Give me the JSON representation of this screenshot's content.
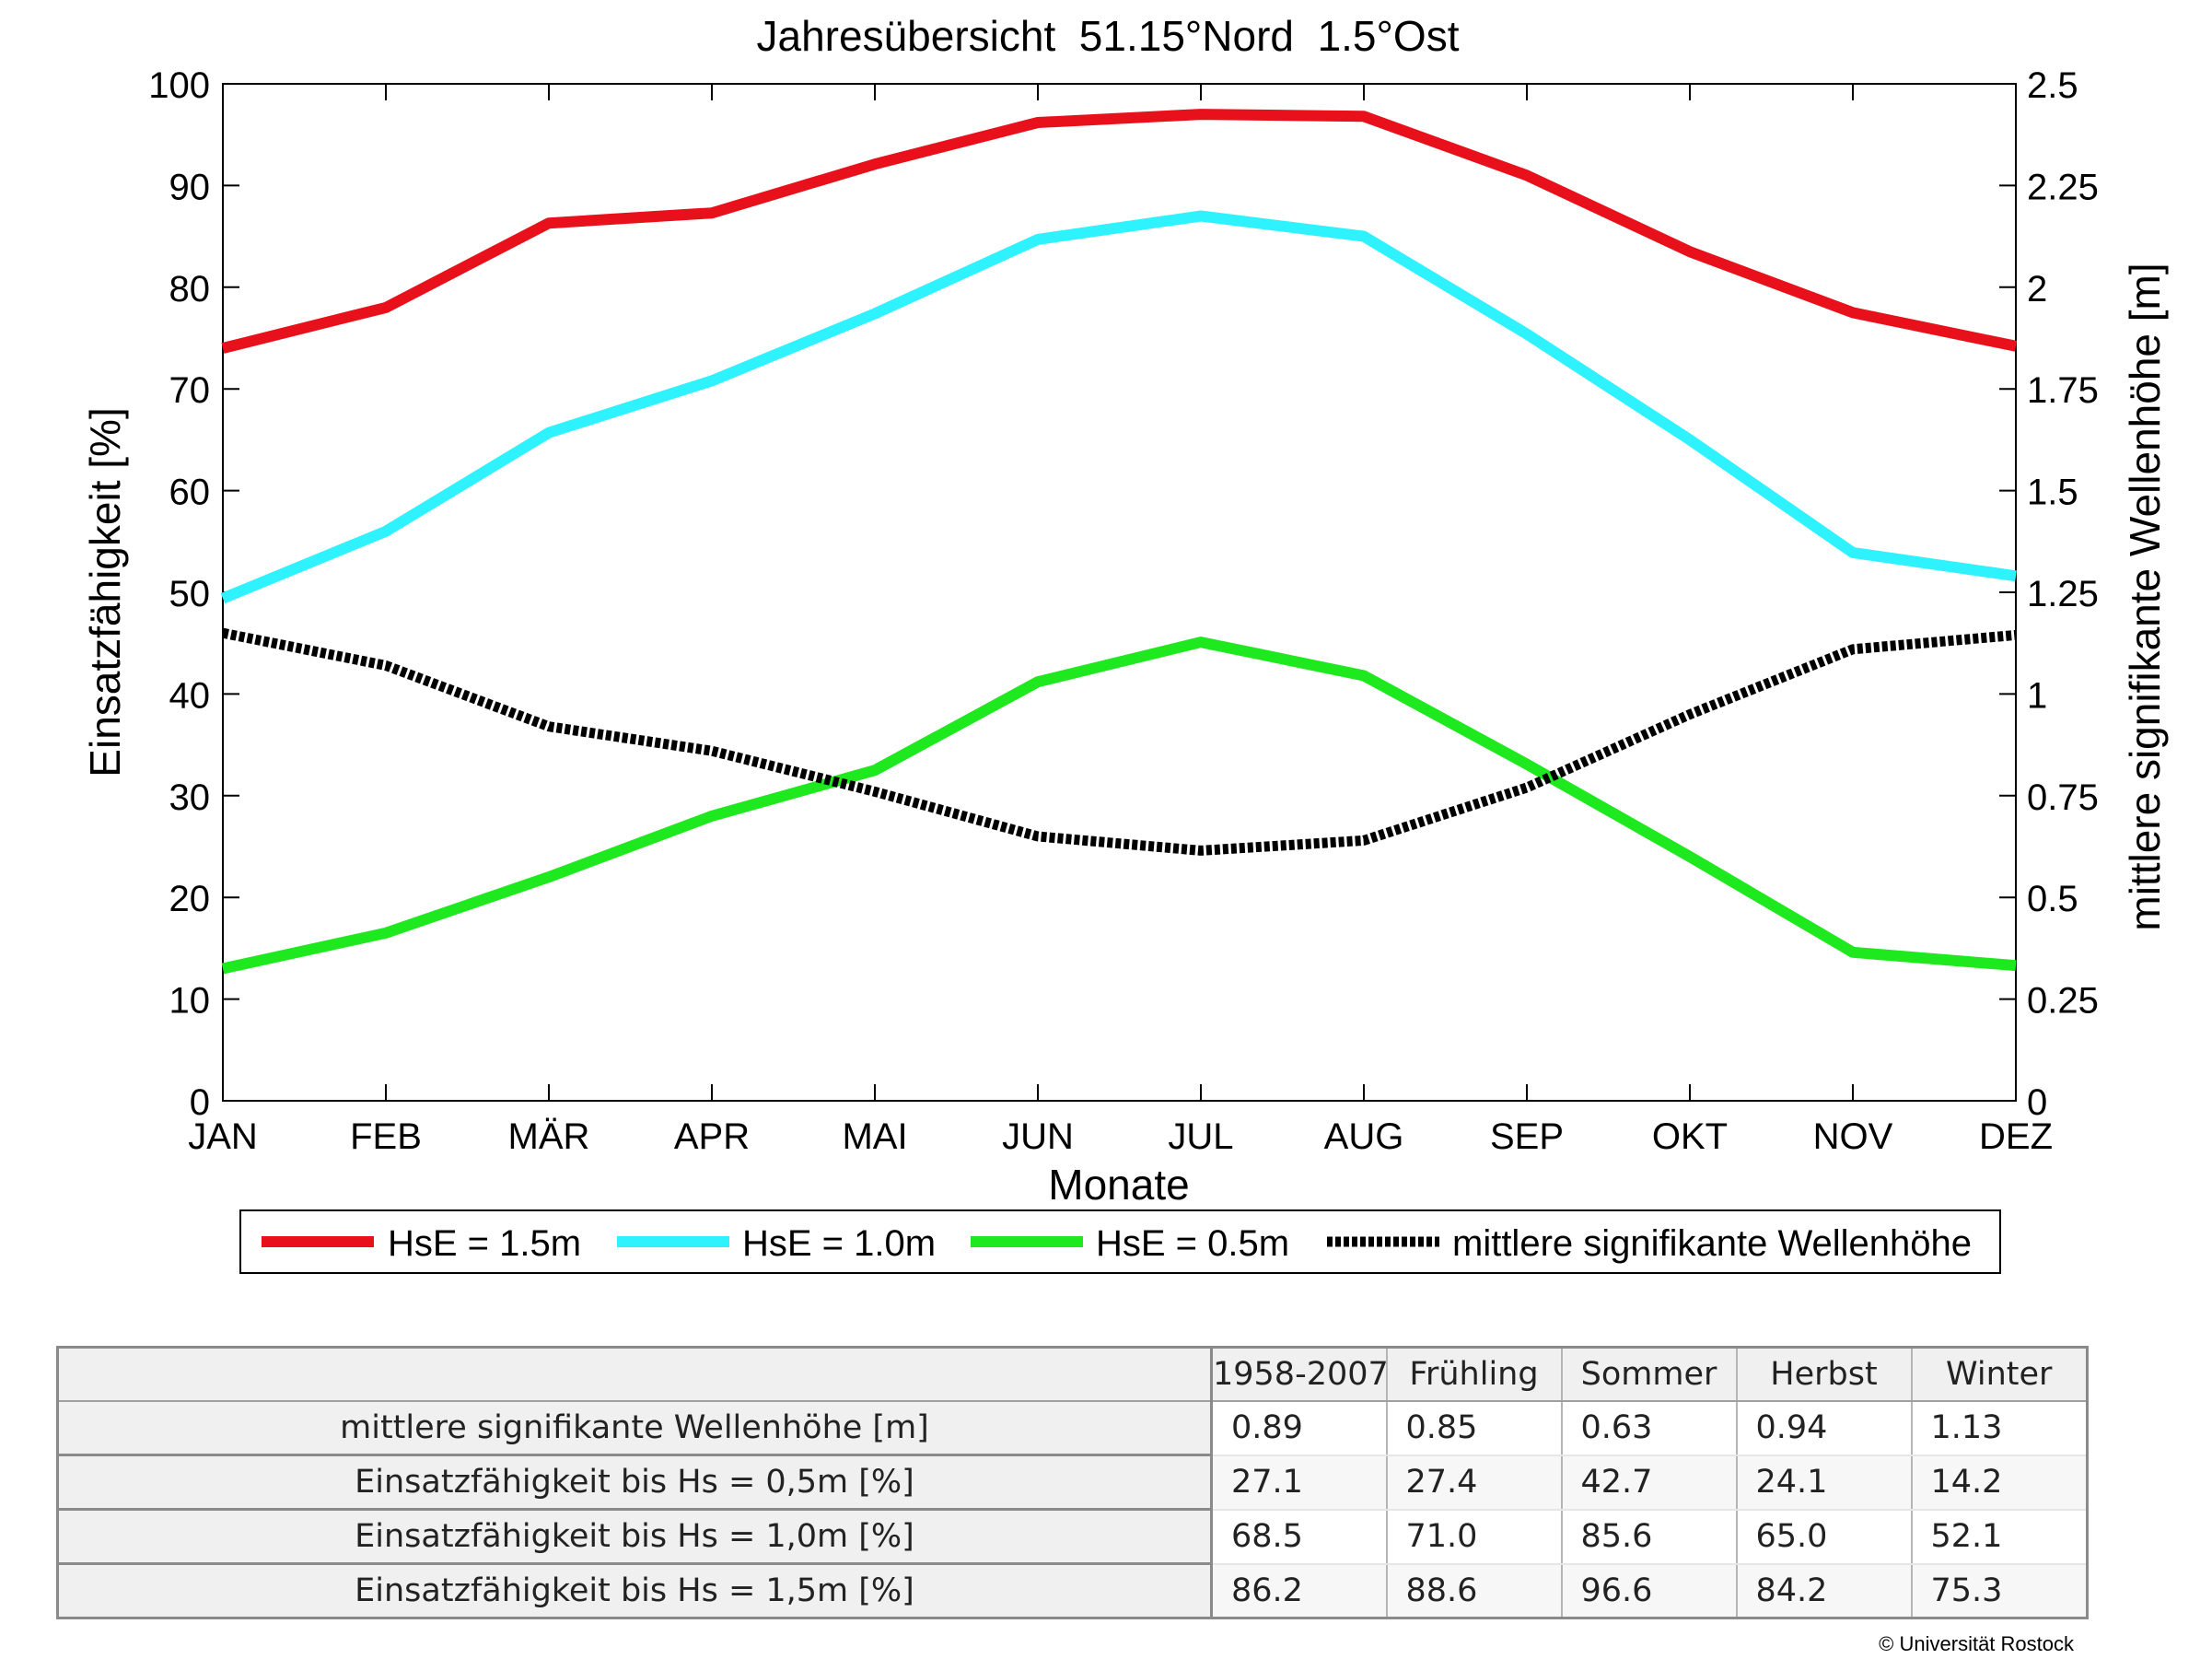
{
  "chart_data": {
    "type": "line",
    "title": "Jahresübersicht  51.15°Nord  1.5°Ost",
    "xlabel": "Monate",
    "ylabel": "Einsatzfähigkeit [%]",
    "ylabel_right": "mittlere signifikante Wellenhöhe [m]",
    "categories": [
      "JAN",
      "FEB",
      "MÄR",
      "APR",
      "MAI",
      "JUN",
      "JUL",
      "AUG",
      "SEP",
      "OKT",
      "NOV",
      "DEZ"
    ],
    "ylim": [
      0,
      100
    ],
    "yticks": [
      "0",
      "10",
      "20",
      "30",
      "40",
      "50",
      "60",
      "70",
      "80",
      "90",
      "100"
    ],
    "ylim_right": [
      0,
      2.5
    ],
    "yticks_right": [
      "0",
      "0.25",
      "0.5",
      "0.75",
      "1",
      "1.25",
      "1.5",
      "1.75",
      "2",
      "2.25",
      "2.5"
    ],
    "grid": false,
    "legend_placement": "bottom",
    "series": [
      {
        "name": "HsE = 1.5m",
        "axis": "left",
        "color": "#e8101a",
        "style": "solid",
        "values": [
          74.0,
          78.0,
          86.3,
          87.3,
          92.1,
          96.2,
          97.0,
          96.8,
          91.0,
          83.5,
          77.5,
          74.2
        ]
      },
      {
        "name": "HsE = 1.0m",
        "axis": "left",
        "color": "#2ff2ff",
        "style": "solid",
        "values": [
          49.4,
          56.0,
          65.7,
          70.8,
          77.4,
          84.7,
          87.0,
          85.0,
          75.4,
          65.0,
          53.9,
          51.6
        ]
      },
      {
        "name": "HsE = 0.5m",
        "axis": "left",
        "color": "#1ee81e",
        "style": "solid",
        "values": [
          13.0,
          16.5,
          22.0,
          28.0,
          32.5,
          41.2,
          45.1,
          41.8,
          33.1,
          24.0,
          14.6,
          13.3
        ]
      },
      {
        "name": "mittlere signifikante Wellenhöhe",
        "axis": "right",
        "color": "#000000",
        "style": "dotted",
        "values": [
          1.15,
          1.07,
          0.92,
          0.86,
          0.76,
          0.65,
          0.615,
          0.64,
          0.77,
          0.95,
          1.11,
          1.145
        ]
      }
    ]
  },
  "table": {
    "columns": [
      "1958-2007",
      "Frühling",
      "Sommer",
      "Herbst",
      "Winter"
    ],
    "rows": [
      {
        "label": "mittlere signifikante Wellenhöhe [m]",
        "values": [
          "0.89",
          "0.85",
          "0.63",
          "0.94",
          "1.13"
        ]
      },
      {
        "label": "Einsatzfähigkeit bis Hs = 0,5m [%]",
        "values": [
          "27.1",
          "27.4",
          "42.7",
          "24.1",
          "14.2"
        ]
      },
      {
        "label": "Einsatzfähigkeit bis Hs = 1,0m [%]",
        "values": [
          "68.5",
          "71.0",
          "85.6",
          "65.0",
          "52.1"
        ]
      },
      {
        "label": "Einsatzfähigkeit bis Hs = 1,5m [%]",
        "values": [
          "86.2",
          "88.6",
          "96.6",
          "84.2",
          "75.3"
        ]
      }
    ]
  },
  "footer": {
    "copyright": "© Universität Rostock"
  }
}
